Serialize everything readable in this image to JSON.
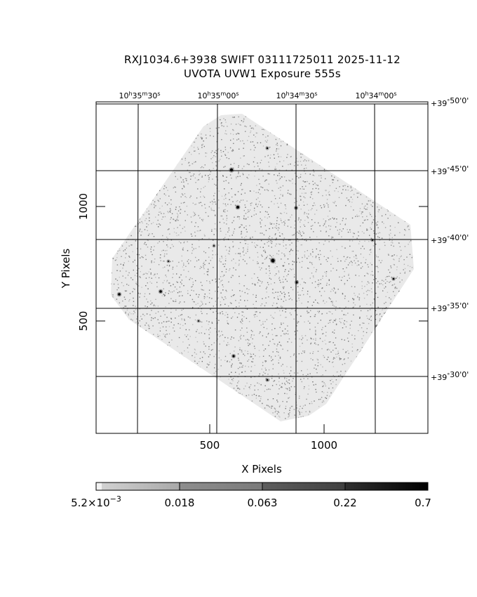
{
  "title": {
    "line1": "RXJ1034.6+3938 SWIFT 03111725011 2025-11-12",
    "line2": "UVOTA UVW1 Exposure        555s"
  },
  "axes": {
    "xlabel": "X Pixels",
    "ylabel": "Y Pixels",
    "x_ticks": [
      {
        "value": 500,
        "label": "500"
      },
      {
        "value": 1000,
        "label": "1000"
      }
    ],
    "y_ticks": [
      {
        "value": 500,
        "label": "500"
      },
      {
        "value": 1000,
        "label": "1000"
      }
    ],
    "ra_labels": [
      {
        "h": "10",
        "m": "35",
        "s": "30"
      },
      {
        "h": "10",
        "m": "35",
        "s": "00"
      },
      {
        "h": "10",
        "m": "34",
        "s": "30"
      },
      {
        "h": "10",
        "m": "34",
        "s": "00"
      }
    ],
    "dec_labels": [
      {
        "deg": "+39",
        "min": "50",
        "sec": "0"
      },
      {
        "deg": "+39",
        "min": "45",
        "sec": "0"
      },
      {
        "deg": "+39",
        "min": "40",
        "sec": "0"
      },
      {
        "deg": "+39",
        "min": "35",
        "sec": "0"
      },
      {
        "deg": "+39",
        "min": "30",
        "sec": "0"
      }
    ]
  },
  "colorbar": {
    "ticks": [
      {
        "mant": "5.2×10",
        "exp": "−3"
      },
      {
        "mant": "0.018",
        "exp": ""
      },
      {
        "mant": "0.063",
        "exp": ""
      },
      {
        "mant": "0.22",
        "exp": ""
      },
      {
        "mant": "0.7",
        "exp": ""
      }
    ],
    "colors": [
      "#f2f2f2",
      "#9a9a9a",
      "#6a6a6a",
      "#3a3a3a",
      "#000000"
    ]
  },
  "image": {
    "colors": {
      "noise": "#8c8c8c",
      "source": "#000000"
    }
  }
}
